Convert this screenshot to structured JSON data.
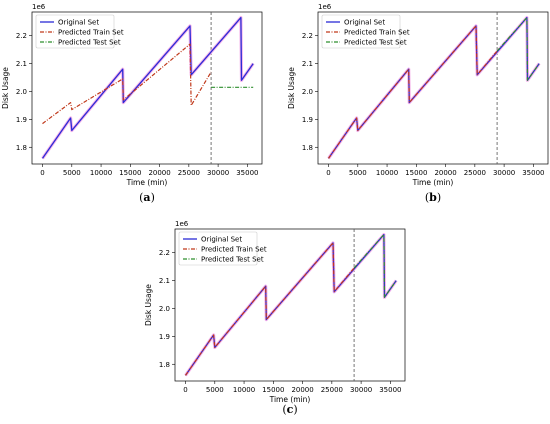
{
  "colors": {
    "original": "#2b2bd6",
    "train": "#c0391b",
    "test": "#2f8f2f",
    "highlight": "#f3a6e6",
    "split": "#555555"
  },
  "chart_data": [
    {
      "panel": "(a)",
      "panel_letter": "a",
      "type": "line",
      "xlabel": "Time (min)",
      "ylabel": "Disk Usage",
      "offset_text": "1e6",
      "xlim": [
        -1800,
        37500
      ],
      "ylim": [
        1.74,
        2.285
      ],
      "xticks": [
        0,
        5000,
        10000,
        15000,
        20000,
        25000,
        30000,
        35000
      ],
      "yticks": [
        1.8,
        1.9,
        2.0,
        2.1,
        2.2
      ],
      "ytick_labels": [
        "1.8",
        "1.9",
        "2.0",
        "2.1",
        "2.2"
      ],
      "split_x": 28800,
      "legend": {
        "placement": "upper-left",
        "entries": [
          "Original Set",
          "Predicted Train Set",
          "Predicted Test Set"
        ]
      },
      "series": [
        {
          "name": "Original Set",
          "role": "original",
          "x": [
            0,
            4800,
            5000,
            13700,
            13800,
            25200,
            25400,
            33900,
            34000,
            36000
          ],
          "y": [
            1.76,
            1.905,
            1.86,
            2.08,
            1.96,
            2.235,
            2.06,
            2.265,
            2.04,
            2.1
          ]
        },
        {
          "name": "Predicted Train Set",
          "role": "train",
          "x": [
            0,
            4800,
            5000,
            13700,
            13800,
            25200,
            25400,
            28800
          ],
          "y": [
            1.885,
            1.96,
            1.935,
            2.045,
            1.97,
            2.17,
            1.95,
            2.07
          ]
        },
        {
          "name": "Predicted Test Set",
          "role": "test",
          "x": [
            28800,
            36000
          ],
          "y": [
            2.015,
            2.015
          ]
        }
      ]
    },
    {
      "panel": "(b)",
      "panel_letter": "b",
      "type": "line",
      "xlabel": "Time (min)",
      "ylabel": "Disk Usage",
      "offset_text": "1e6",
      "xlim": [
        -1800,
        37500
      ],
      "ylim": [
        1.74,
        2.285
      ],
      "xticks": [
        0,
        5000,
        10000,
        15000,
        20000,
        25000,
        30000,
        35000
      ],
      "yticks": [
        1.8,
        1.9,
        2.0,
        2.1,
        2.2
      ],
      "ytick_labels": [
        "1.8",
        "1.9",
        "2.0",
        "2.1",
        "2.2"
      ],
      "split_x": 28800,
      "legend": {
        "placement": "upper-left",
        "entries": [
          "Original Set",
          "Predicted Train Set",
          "Predicted Test Set"
        ]
      },
      "series": [
        {
          "name": "Original Set",
          "role": "original",
          "x": [
            0,
            4800,
            5000,
            13700,
            13800,
            25200,
            25400,
            33900,
            34000,
            36000
          ],
          "y": [
            1.76,
            1.905,
            1.86,
            2.08,
            1.96,
            2.235,
            2.06,
            2.265,
            2.04,
            2.1
          ]
        },
        {
          "name": "Predicted Train Set",
          "role": "train",
          "x": [
            0,
            4800,
            5000,
            13700,
            13800,
            25200,
            25400,
            28800
          ],
          "y": [
            1.76,
            1.905,
            1.86,
            2.08,
            1.96,
            2.235,
            2.06,
            2.145
          ]
        },
        {
          "name": "Predicted Test Set",
          "role": "test",
          "x": [
            28800,
            33900,
            34000,
            36000
          ],
          "y": [
            2.145,
            2.265,
            2.04,
            2.1
          ]
        }
      ]
    },
    {
      "panel": "(c)",
      "panel_letter": "c",
      "type": "line",
      "xlabel": "Time (min)",
      "ylabel": "Disk Usage",
      "offset_text": "1e6",
      "xlim": [
        -1800,
        37500
      ],
      "ylim": [
        1.74,
        2.285
      ],
      "xticks": [
        0,
        5000,
        10000,
        15000,
        20000,
        25000,
        30000,
        35000
      ],
      "yticks": [
        1.8,
        1.9,
        2.0,
        2.1,
        2.2
      ],
      "ytick_labels": [
        "1.8",
        "1.9",
        "2.0",
        "2.1",
        "2.2"
      ],
      "split_x": 28800,
      "legend": {
        "placement": "upper-left",
        "entries": [
          "Original Set",
          "Predicted Train Set",
          "Predicted Test Set"
        ]
      },
      "series": [
        {
          "name": "Original Set",
          "role": "original",
          "x": [
            0,
            4800,
            5000,
            13700,
            13800,
            25200,
            25400,
            33900,
            34000,
            36000
          ],
          "y": [
            1.76,
            1.905,
            1.86,
            2.08,
            1.96,
            2.235,
            2.06,
            2.265,
            2.04,
            2.1
          ]
        },
        {
          "name": "Predicted Train Set",
          "role": "train",
          "x": [
            0,
            4800,
            5000,
            13700,
            13800,
            25200,
            25400,
            28800
          ],
          "y": [
            1.76,
            1.905,
            1.86,
            2.08,
            1.96,
            2.235,
            2.06,
            2.145
          ]
        },
        {
          "name": "Predicted Test Set",
          "role": "test",
          "x": [
            28800,
            33900,
            34000,
            36000
          ],
          "y": [
            2.145,
            2.265,
            2.04,
            2.1
          ]
        }
      ]
    }
  ]
}
